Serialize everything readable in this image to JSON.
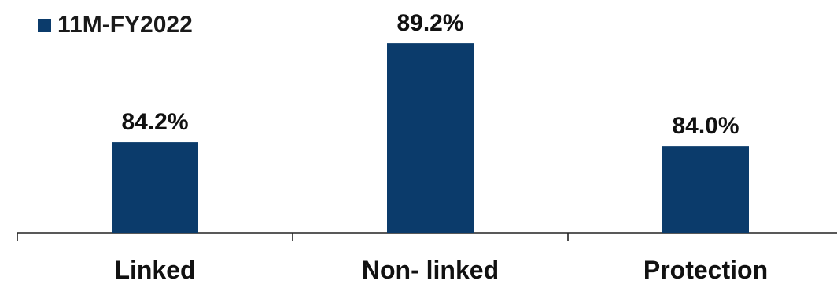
{
  "chart_data": {
    "type": "bar",
    "categories": [
      "Linked",
      "Non- linked",
      "Protection"
    ],
    "series": [
      {
        "name": "11M-FY2022",
        "values": [
          84.2,
          89.2,
          84.0
        ],
        "labels": [
          "84.2%",
          "89.2%",
          "84.0%"
        ]
      }
    ],
    "title": "",
    "xlabel": "",
    "ylabel": "",
    "ylim": [
      79.6,
      89.8
    ],
    "grid": false,
    "legend_position": "top-left",
    "bar_color": "#0b3b6b"
  }
}
